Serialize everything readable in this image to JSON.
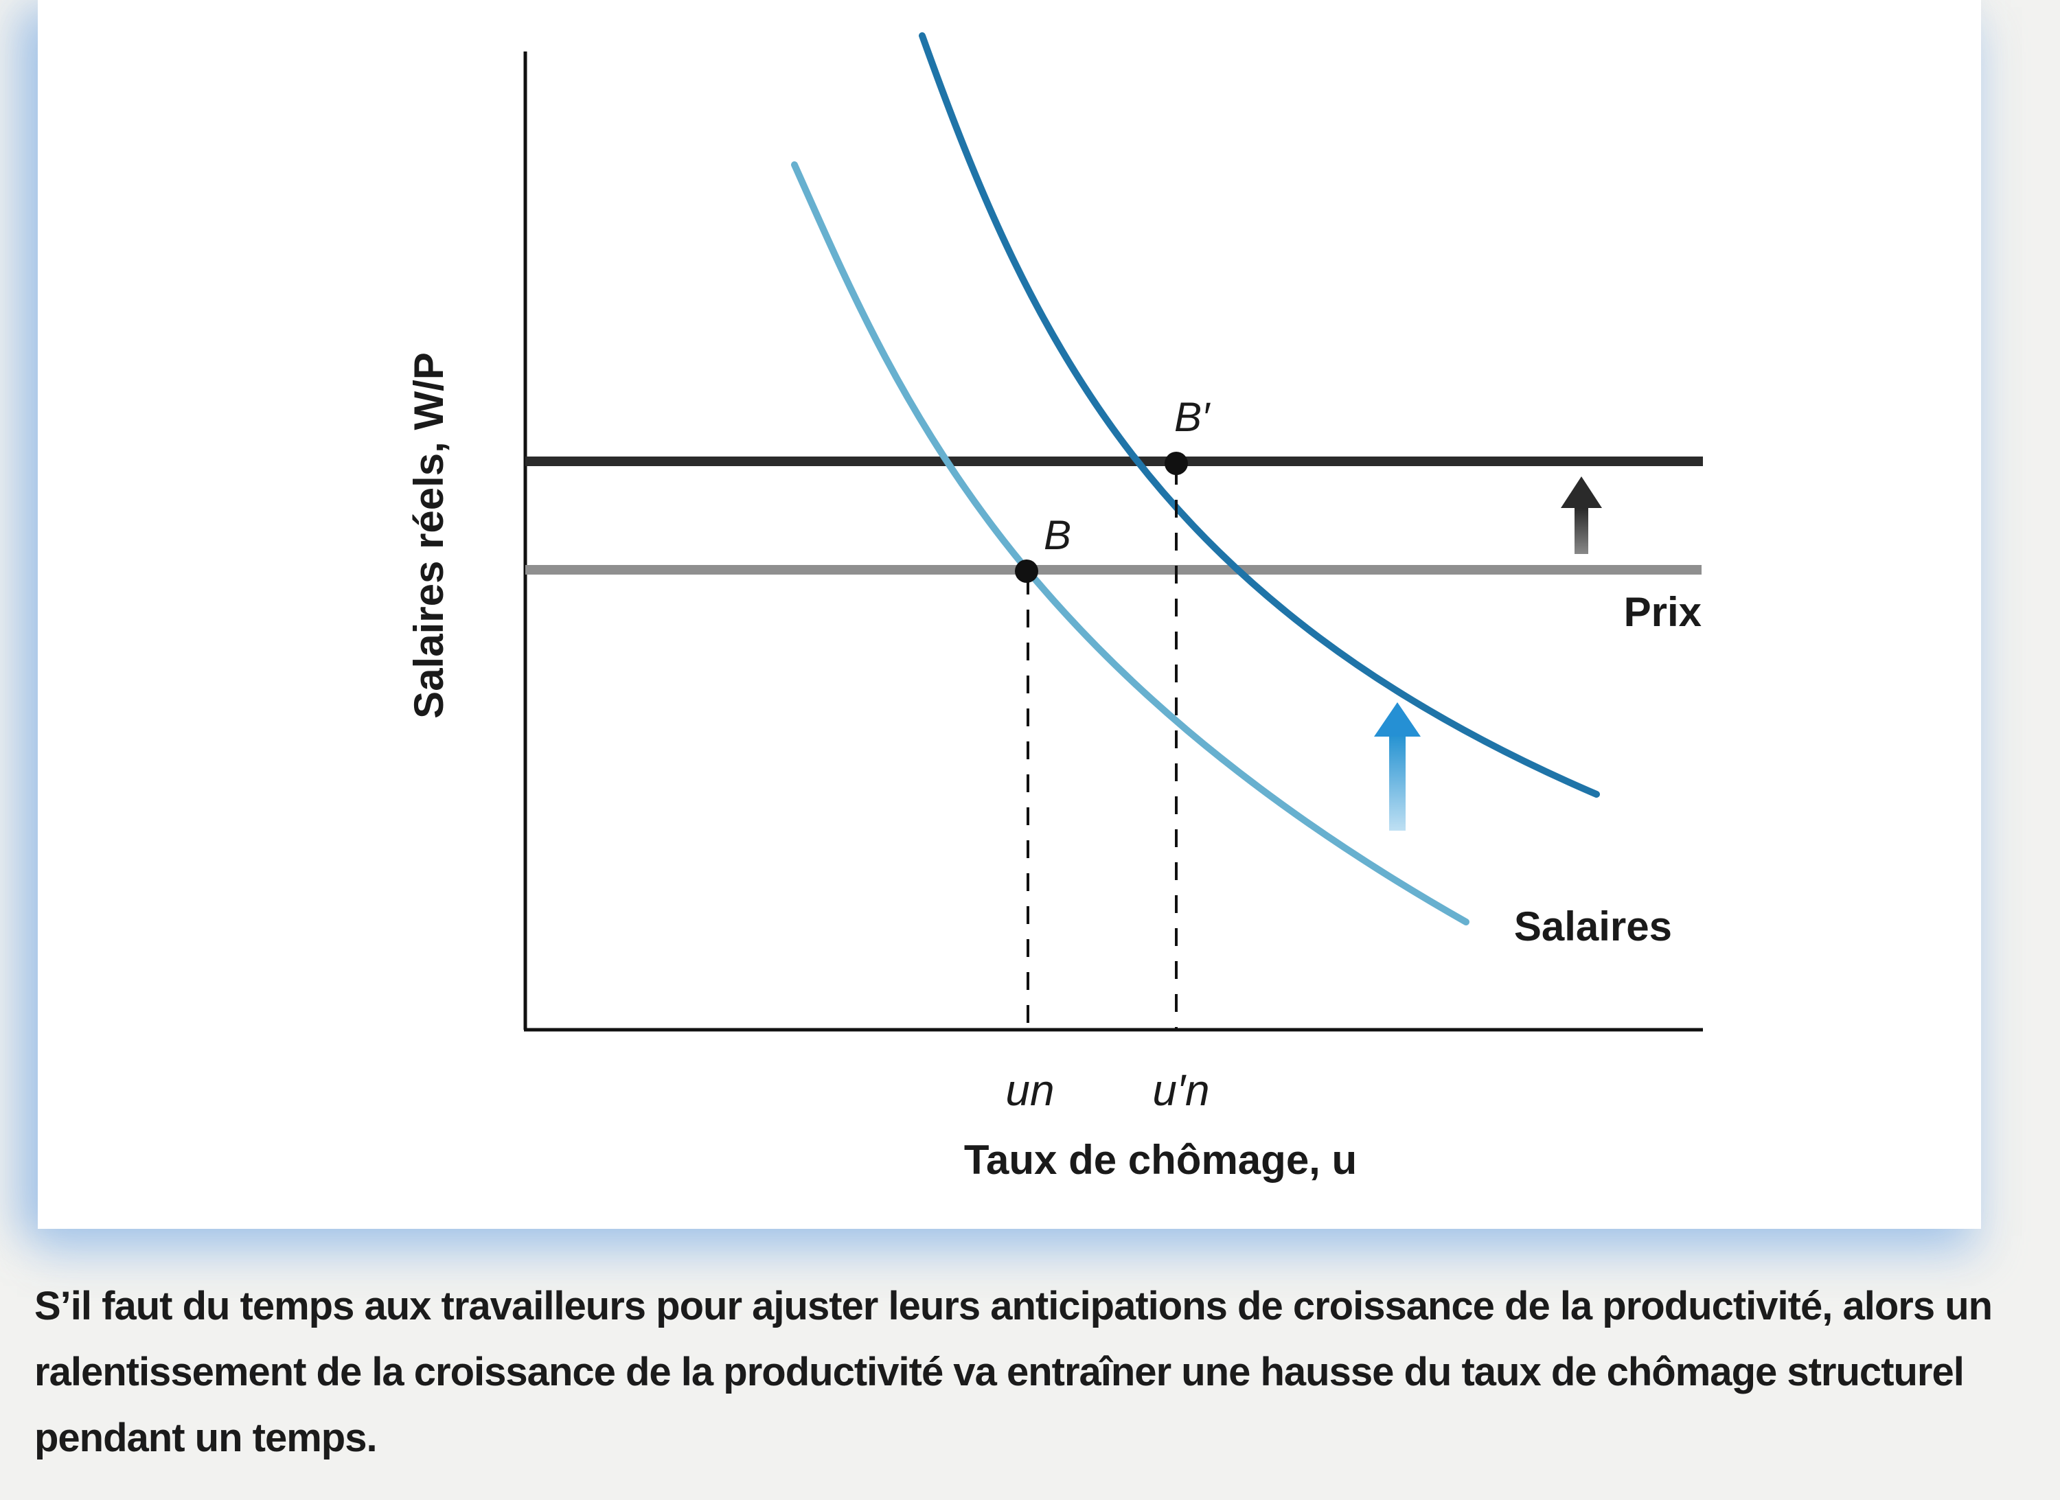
{
  "figure": {
    "y_axis_label": "Salaires réels, W/P",
    "x_axis_label": "Taux de chômage, u",
    "prices_label": "Prix",
    "wages_label": "Salaires",
    "point_B": "B",
    "point_B_prime": "B′",
    "tick_un": "un",
    "tick_un_prime": "u′n",
    "colors": {
      "axes": "#111111",
      "price_line_new": "#2b2b2b",
      "price_line_old": "#8f8f8f",
      "wage_curve_new": "#1f74a8",
      "wage_curve_old": "#67b0cf",
      "arrow_dark": "#333333",
      "arrow_blue": "#2f95d0"
    }
  },
  "caption": "S’il faut du temps aux travailleurs pour ajuster leurs anticipations de croissance de la productivité, alors un ralentissement de la croissance de la productivité va entraîner une hausse du taux de chômage structurel pendant un temps."
}
